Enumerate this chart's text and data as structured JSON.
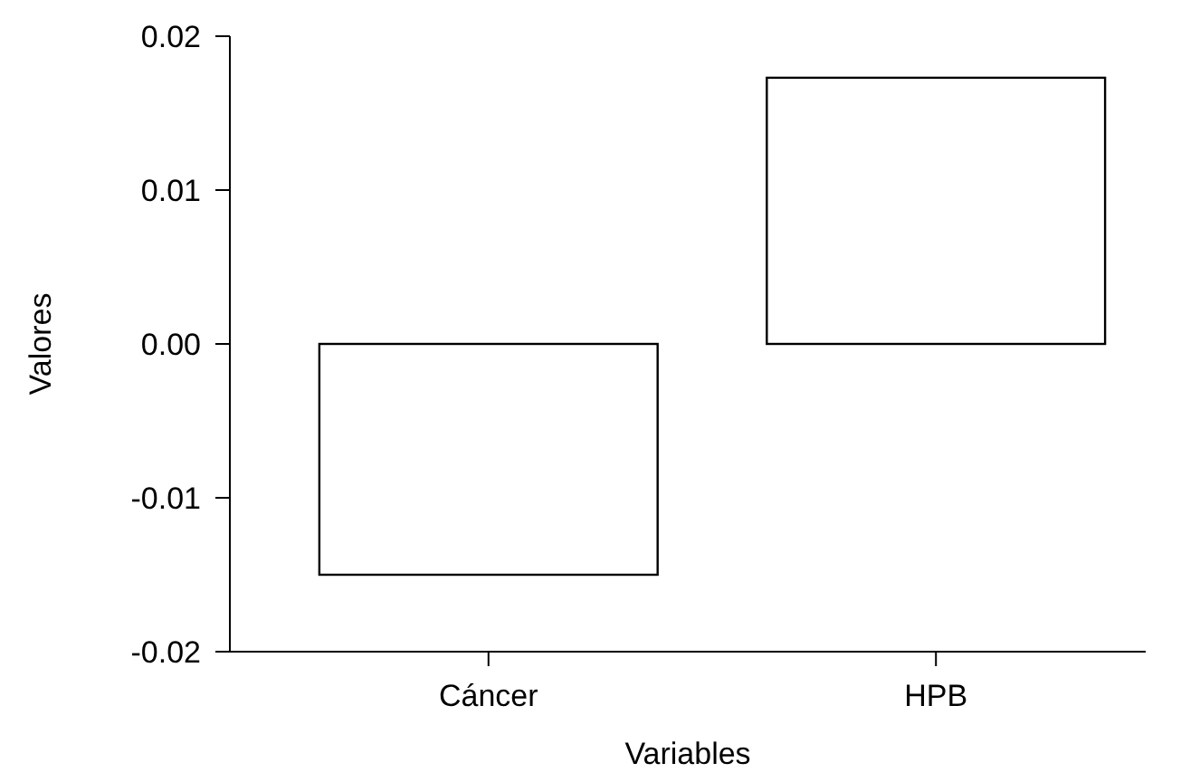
{
  "chart_data": {
    "type": "bar",
    "xlabel": "Variables",
    "ylabel": "Valores",
    "categories": [
      "Cáncer",
      "HPB"
    ],
    "values": [
      -0.015,
      0.0173
    ],
    "color": "#ffffff",
    "ylim": [
      -0.02,
      0.02
    ],
    "yticks": [
      -0.02,
      -0.01,
      {
        "value": 0,
        "label": "0.00"
      },
      0.01,
      0.02
    ],
    "grid": false
  }
}
